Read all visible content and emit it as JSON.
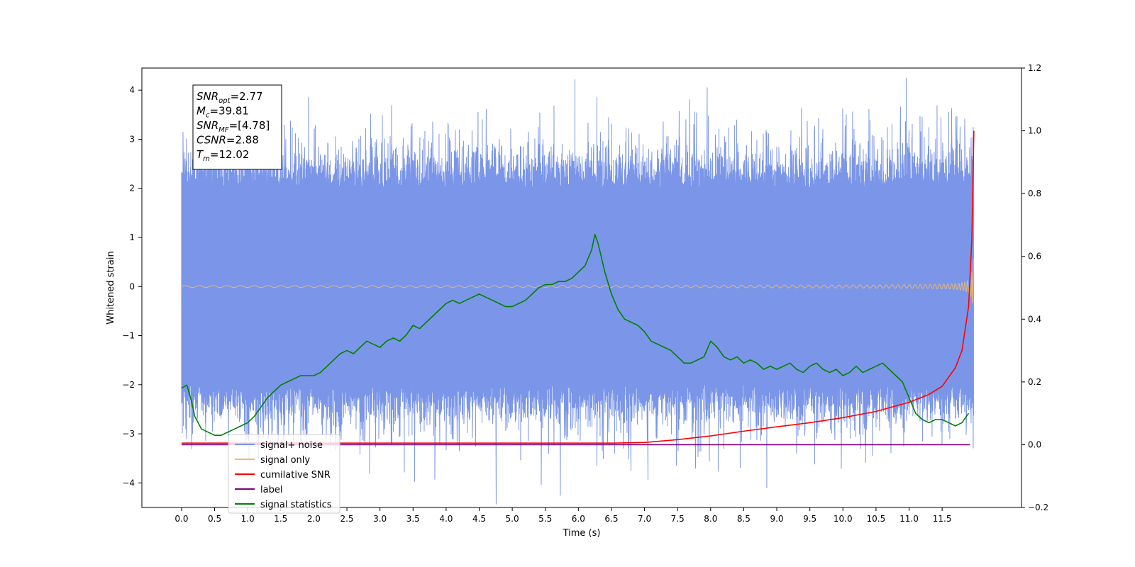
{
  "chart_data": {
    "type": "line",
    "xlabel": "Time (s)",
    "ylabel": "Whitened strain",
    "xlim": [
      -0.6,
      12.7
    ],
    "ylim": [
      -4.5,
      4.45
    ],
    "y2lim": [
      -0.2,
      1.2
    ],
    "x_ticks": [
      "0.0",
      "0.5",
      "1.0",
      "1.5",
      "2.0",
      "2.5",
      "3.0",
      "3.5",
      "4.0",
      "4.5",
      "5.0",
      "5.5",
      "6.0",
      "6.5",
      "7.0",
      "7.5",
      "8.0",
      "8.5",
      "9.0",
      "9.5",
      "10.0",
      "10.5",
      "11.0",
      "11.5"
    ],
    "y_ticks": [
      "4",
      "3",
      "2",
      "1",
      "0",
      "−1",
      "−2",
      "−3",
      "−4"
    ],
    "y2_ticks": [
      "1.2",
      "1.0",
      "0.8",
      "0.6",
      "0.4",
      "0.2",
      "0.0",
      "−0.2"
    ],
    "grid": false,
    "legend_position": "lower-left",
    "annotation": {
      "lines": [
        {
          "base": "SNR",
          "sub": "opt",
          "value": "=2.77"
        },
        {
          "base": "M",
          "sub": "c",
          "value": "=39.81"
        },
        {
          "base": "SNR",
          "sub": "MF",
          "value": "=[4.78]"
        },
        {
          "base": "CSNR",
          "sub": "",
          "value": "=2.88"
        },
        {
          "base": "T",
          "sub": "m",
          "value": "=12.02"
        }
      ]
    },
    "series": [
      {
        "name": "signal+ noise",
        "color": "#7b96e8",
        "axis": "left",
        "kind": "noise",
        "t_end": 11.98,
        "envelope_upper": 2.0,
        "envelope_lower": -2.0,
        "spikes": [
          [
            1.15,
            3.5
          ],
          [
            1.92,
            3.85
          ],
          [
            3.8,
            3.35
          ],
          [
            4.55,
            3.4
          ],
          [
            6.28,
            3.85
          ],
          [
            7.95,
            4.05
          ],
          [
            10.05,
            3.5
          ],
          [
            11.2,
            3.45
          ],
          [
            11.6,
            3.55
          ],
          [
            11.98,
            3.82
          ],
          [
            1.9,
            -3.0
          ],
          [
            3.2,
            -2.95
          ],
          [
            4.2,
            -3.35
          ],
          [
            5.55,
            -3.4
          ],
          [
            6.28,
            -3.65
          ],
          [
            6.55,
            -3.4
          ],
          [
            8.2,
            -3.3
          ],
          [
            8.85,
            -4.1
          ],
          [
            9.3,
            -3.4
          ],
          [
            11.35,
            -3.05
          ],
          [
            11.6,
            -2.95
          ]
        ]
      },
      {
        "name": "signal only",
        "color": "#f3b86b",
        "axis": "left",
        "kind": "chirp",
        "t_start": 0.0,
        "t_end": 11.98,
        "peak_amplitude": 0.9
      },
      {
        "name": "cumilative SNR",
        "color": "#ff0000",
        "axis": "right",
        "x": [
          0.0,
          6.0,
          6.5,
          7.0,
          7.5,
          8.0,
          8.5,
          9.0,
          9.5,
          10.0,
          10.5,
          11.0,
          11.3,
          11.5,
          11.7,
          11.8,
          11.9,
          11.95,
          11.98
        ],
        "y": [
          0.005,
          0.005,
          0.005,
          0.007,
          0.016,
          0.028,
          0.043,
          0.057,
          0.07,
          0.086,
          0.106,
          0.135,
          0.16,
          0.186,
          0.245,
          0.3,
          0.44,
          0.66,
          1.0
        ]
      },
      {
        "name": "label",
        "color": "#800080",
        "axis": "right",
        "x": [
          0.0,
          11.92
        ],
        "y": [
          0.0,
          0.0
        ]
      },
      {
        "name": "signal statistics",
        "color": "#008000",
        "axis": "right",
        "x": [
          0.0,
          0.08,
          0.15,
          0.2,
          0.25,
          0.3,
          0.4,
          0.5,
          0.6,
          0.7,
          0.8,
          0.9,
          1.0,
          1.1,
          1.2,
          1.3,
          1.4,
          1.5,
          1.6,
          1.7,
          1.8,
          1.9,
          2.0,
          2.1,
          2.2,
          2.3,
          2.4,
          2.5,
          2.6,
          2.7,
          2.8,
          2.9,
          3.0,
          3.1,
          3.2,
          3.3,
          3.4,
          3.5,
          3.6,
          3.7,
          3.8,
          3.9,
          4.0,
          4.1,
          4.2,
          4.3,
          4.4,
          4.5,
          4.6,
          4.7,
          4.8,
          4.9,
          5.0,
          5.1,
          5.2,
          5.3,
          5.4,
          5.5,
          5.6,
          5.7,
          5.8,
          5.9,
          6.0,
          6.1,
          6.2,
          6.25,
          6.3,
          6.4,
          6.5,
          6.6,
          6.7,
          6.8,
          6.9,
          7.0,
          7.1,
          7.2,
          7.3,
          7.4,
          7.5,
          7.6,
          7.7,
          7.8,
          7.9,
          8.0,
          8.1,
          8.2,
          8.3,
          8.4,
          8.5,
          8.6,
          8.7,
          8.8,
          8.9,
          9.0,
          9.1,
          9.2,
          9.3,
          9.4,
          9.5,
          9.6,
          9.7,
          9.8,
          9.9,
          10.0,
          10.1,
          10.2,
          10.3,
          10.4,
          10.5,
          10.6,
          10.7,
          10.8,
          10.9,
          11.0,
          11.1,
          11.2,
          11.3,
          11.4,
          11.5,
          11.6,
          11.7,
          11.8,
          11.9
        ],
        "y": [
          0.18,
          0.19,
          0.14,
          0.09,
          0.07,
          0.05,
          0.04,
          0.03,
          0.03,
          0.04,
          0.05,
          0.06,
          0.07,
          0.09,
          0.12,
          0.15,
          0.17,
          0.19,
          0.2,
          0.21,
          0.22,
          0.22,
          0.22,
          0.23,
          0.25,
          0.27,
          0.29,
          0.3,
          0.29,
          0.31,
          0.33,
          0.32,
          0.31,
          0.33,
          0.34,
          0.33,
          0.35,
          0.38,
          0.37,
          0.39,
          0.41,
          0.43,
          0.45,
          0.46,
          0.45,
          0.46,
          0.47,
          0.48,
          0.47,
          0.46,
          0.45,
          0.44,
          0.44,
          0.45,
          0.46,
          0.48,
          0.5,
          0.51,
          0.51,
          0.52,
          0.52,
          0.53,
          0.55,
          0.57,
          0.62,
          0.67,
          0.64,
          0.55,
          0.48,
          0.43,
          0.4,
          0.39,
          0.38,
          0.36,
          0.33,
          0.32,
          0.31,
          0.3,
          0.28,
          0.26,
          0.26,
          0.27,
          0.28,
          0.33,
          0.31,
          0.28,
          0.27,
          0.28,
          0.26,
          0.27,
          0.26,
          0.24,
          0.25,
          0.24,
          0.25,
          0.26,
          0.24,
          0.23,
          0.25,
          0.26,
          0.24,
          0.23,
          0.24,
          0.22,
          0.23,
          0.25,
          0.23,
          0.24,
          0.25,
          0.26,
          0.24,
          0.22,
          0.2,
          0.15,
          0.1,
          0.08,
          0.07,
          0.08,
          0.08,
          0.07,
          0.06,
          0.07,
          0.1
        ]
      }
    ]
  }
}
